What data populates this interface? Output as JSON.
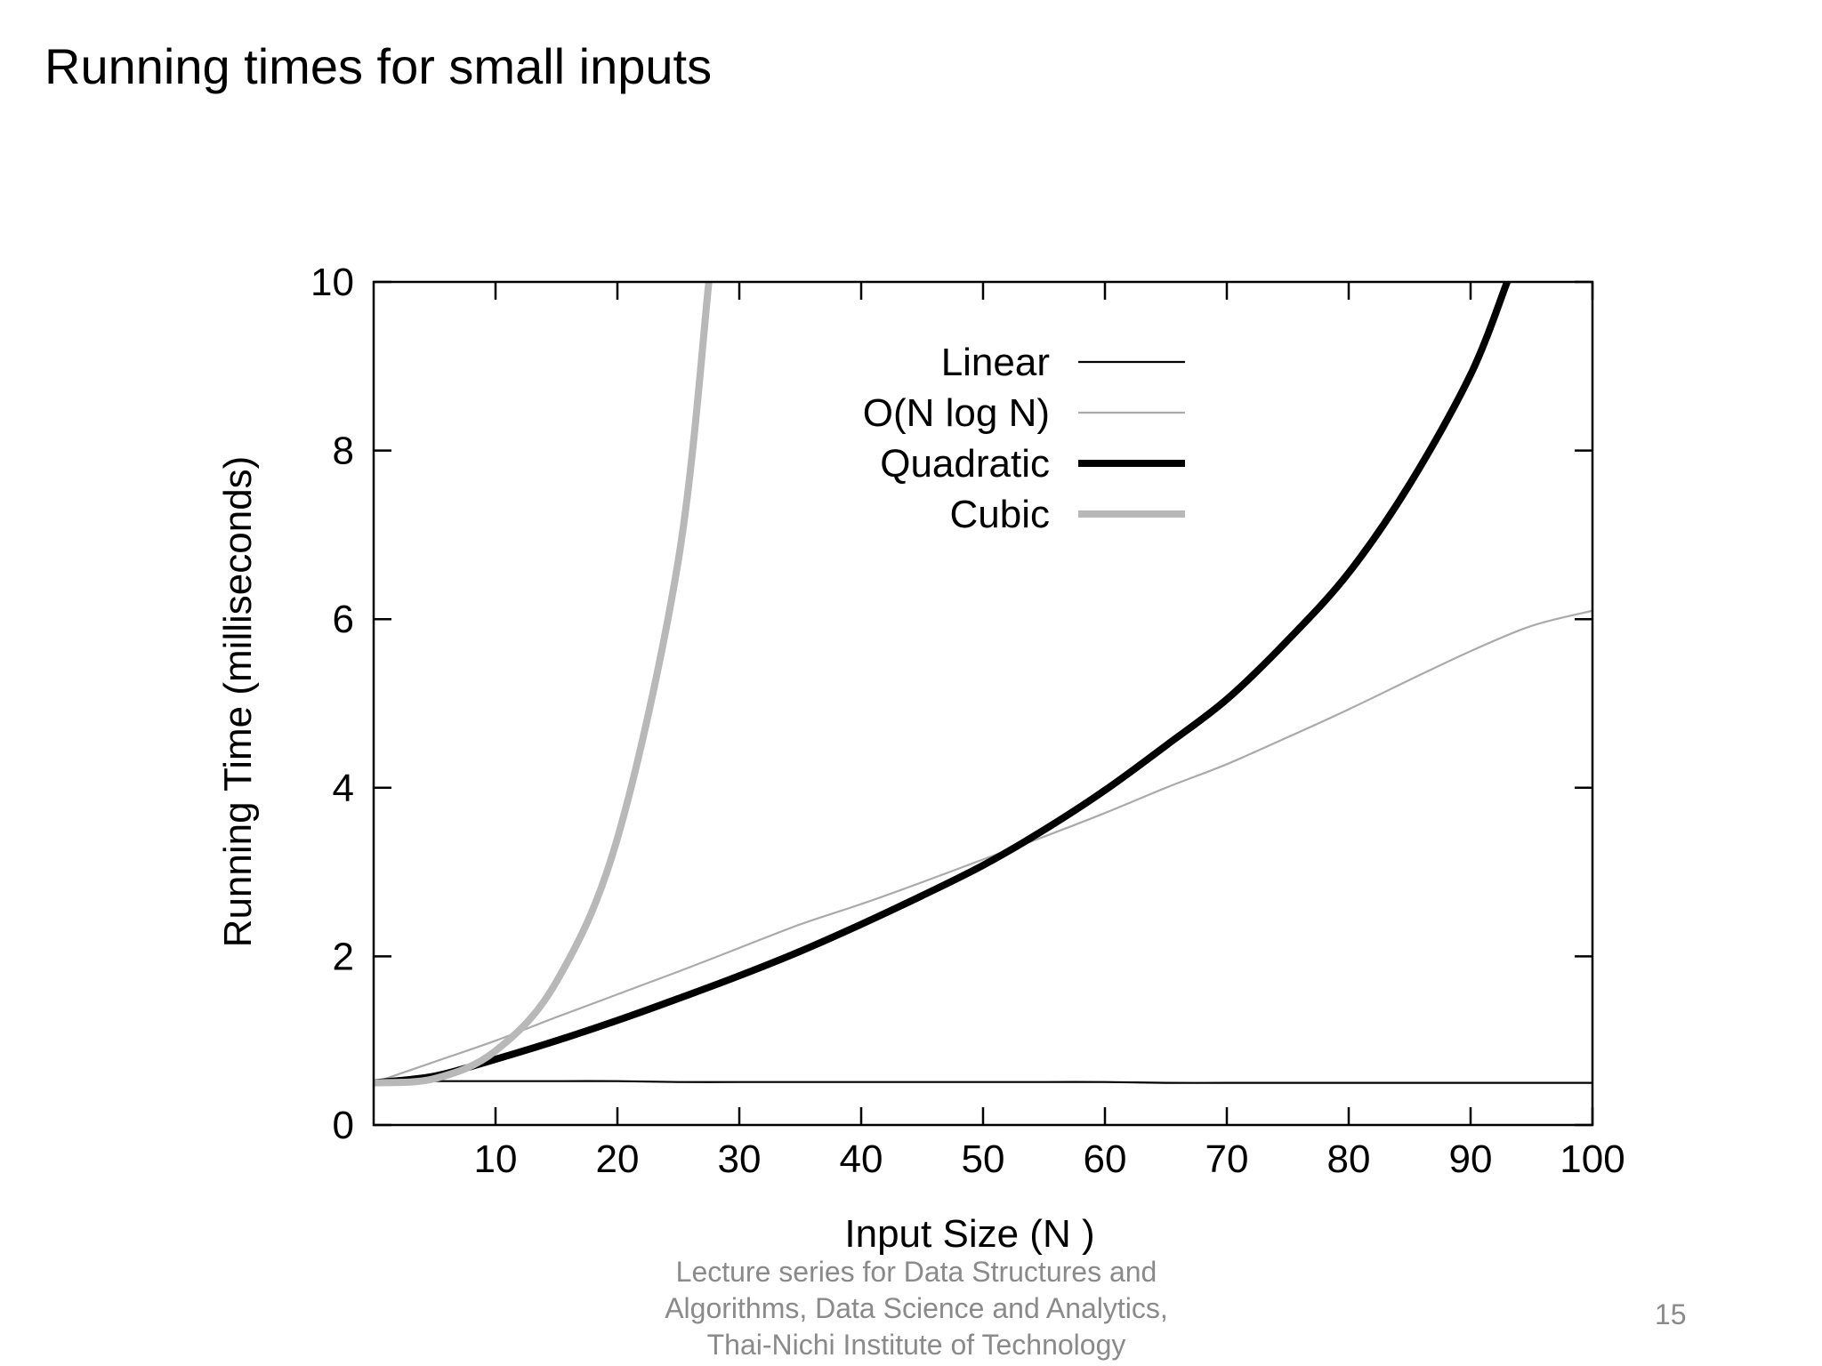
{
  "slide": {
    "title": "Running times for small inputs",
    "footer_lines": [
      "Lecture series for Data Structures and",
      "Algorithms, Data Science and Analytics,",
      "Thai-Nichi Institute of Technology"
    ],
    "page_number": "15"
  },
  "chart_data": {
    "type": "line",
    "title": "",
    "xlabel": "Input Size (N )",
    "ylabel": "Running Time (milliseconds)",
    "xlim": [
      0,
      100
    ],
    "ylim": [
      0,
      10
    ],
    "x_ticks": [
      10,
      20,
      30,
      40,
      50,
      60,
      70,
      80,
      90,
      100
    ],
    "y_ticks": [
      0,
      2,
      4,
      6,
      8,
      10
    ],
    "grid": false,
    "legend_position": "top-center",
    "x": [
      0,
      5,
      10,
      15,
      20,
      25,
      30,
      35,
      40,
      45,
      50,
      55,
      60,
      65,
      70,
      75,
      80,
      85,
      90,
      95,
      100
    ],
    "series": [
      {
        "name": "Linear",
        "color": "#000000",
        "style": "thin",
        "values": [
          0.52,
          0.52,
          0.52,
          0.52,
          0.52,
          0.51,
          0.51,
          0.51,
          0.51,
          0.51,
          0.51,
          0.51,
          0.51,
          0.5,
          0.5,
          0.5,
          0.5,
          0.5,
          0.5,
          0.5,
          0.5
        ]
      },
      {
        "name": "O(N log N)",
        "color": "#aaaaaa",
        "style": "thin",
        "values": [
          0.5,
          0.75,
          1.0,
          1.28,
          1.55,
          1.82,
          2.1,
          2.38,
          2.62,
          2.88,
          3.15,
          3.42,
          3.7,
          4.0,
          4.28,
          4.6,
          4.93,
          5.28,
          5.62,
          5.92,
          6.1
        ]
      },
      {
        "name": "Quadratic",
        "color": "#000000",
        "style": "thick",
        "values": [
          0.5,
          0.58,
          0.78,
          1.0,
          1.24,
          1.5,
          1.77,
          2.06,
          2.38,
          2.72,
          3.08,
          3.5,
          3.97,
          4.5,
          5.05,
          5.75,
          6.55,
          7.6,
          8.9,
          null,
          null
        ],
        "extra_points": [
          [
            93,
            10.0
          ]
        ]
      },
      {
        "name": "Cubic",
        "color": "#b8b8b8",
        "style": "thick",
        "values": [
          0.5,
          0.55,
          0.88,
          1.7,
          3.4,
          6.7,
          null,
          null,
          null,
          null,
          null,
          null,
          null,
          null,
          null,
          null,
          null,
          null,
          null,
          null,
          null
        ],
        "extra_points": [
          [
            27.5,
            10.0
          ]
        ]
      }
    ]
  }
}
